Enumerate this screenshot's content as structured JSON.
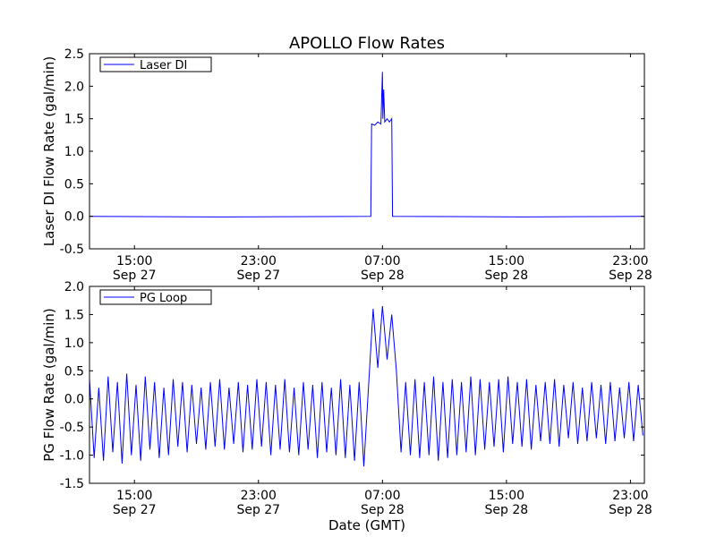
{
  "chart_data": [
    {
      "type": "line",
      "title": "APOLLO Flow Rates",
      "xlabel": "",
      "ylabel": "Laser DI Flow Rate (gal/min)",
      "ylim": [
        -0.5,
        2.5
      ],
      "yticks": [
        "-0.5",
        "0.0",
        "0.5",
        "1.0",
        "1.5",
        "2.0",
        "2.5"
      ],
      "ytick_values": [
        -0.5,
        0,
        0.5,
        1,
        1.5,
        2,
        2.5
      ],
      "x_units": "hours since Sep 27 00:00 GMT",
      "xlim": [
        12.1,
        47.9
      ],
      "xtick_values": [
        15,
        23,
        31,
        39,
        47
      ],
      "xticks": [
        [
          "15:00",
          "Sep 27"
        ],
        [
          "23:00",
          "Sep 27"
        ],
        [
          "07:00",
          "Sep 28"
        ],
        [
          "15:00",
          "Sep 28"
        ],
        [
          "23:00",
          "Sep 28"
        ]
      ],
      "legend": {
        "label": "Laser DI",
        "placement": "top-left"
      },
      "series": [
        {
          "name": "Laser DI",
          "color": "#0000ff",
          "points": [
            [
              12.1,
              0
            ],
            [
              20,
              -0.01
            ],
            [
              30.25,
              0
            ],
            [
              30.3,
              1.42
            ],
            [
              30.5,
              1.4
            ],
            [
              30.7,
              1.45
            ],
            [
              30.9,
              1.42
            ],
            [
              31.0,
              2.22
            ],
            [
              31.03,
              1.5
            ],
            [
              31.08,
              1.95
            ],
            [
              31.15,
              1.45
            ],
            [
              31.3,
              1.5
            ],
            [
              31.45,
              1.45
            ],
            [
              31.6,
              1.5
            ],
            [
              31.65,
              0
            ],
            [
              40,
              -0.01
            ],
            [
              47.9,
              0
            ]
          ]
        }
      ]
    },
    {
      "type": "line",
      "title": "",
      "xlabel": "Date (GMT)",
      "ylabel": "PG Flow Rate (gal/min)",
      "ylim": [
        -1.5,
        2.0
      ],
      "yticks": [
        "-1.5",
        "-1.0",
        "-0.5",
        "0.0",
        "0.5",
        "1.0",
        "1.5",
        "2.0"
      ],
      "ytick_values": [
        -1.5,
        -1,
        -0.5,
        0,
        0.5,
        1,
        1.5,
        2
      ],
      "x_units": "hours since Sep 27 00:00 GMT",
      "xlim": [
        12.1,
        47.9
      ],
      "xtick_values": [
        15,
        23,
        31,
        39,
        47
      ],
      "xticks": [
        [
          "15:00",
          "Sep 27"
        ],
        [
          "23:00",
          "Sep 27"
        ],
        [
          "07:00",
          "Sep 28"
        ],
        [
          "15:00",
          "Sep 28"
        ],
        [
          "23:00",
          "Sep 28"
        ]
      ],
      "legend": {
        "label": "PG Loop",
        "placement": "top-left"
      },
      "series": [
        {
          "name": "PG Loop",
          "color": "#0000ff",
          "x_start": 12.1,
          "x_step": 0.3,
          "values": [
            0.35,
            -1.05,
            0.2,
            -1.1,
            0.4,
            -0.95,
            0.3,
            -1.15,
            0.45,
            -1.0,
            0.25,
            -1.1,
            0.4,
            -0.9,
            0.3,
            -1.05,
            0.2,
            -1.0,
            0.35,
            -0.85,
            0.3,
            -0.95,
            0.25,
            -0.8,
            0.2,
            -0.9,
            0.3,
            -0.85,
            0.35,
            -0.9,
            0.2,
            -0.8,
            0.3,
            -0.95,
            0.25,
            -0.9,
            0.35,
            -0.85,
            0.3,
            -1.0,
            0.25,
            -0.9,
            0.35,
            -0.95,
            0.2,
            -1.0,
            0.3,
            -0.9,
            0.25,
            -1.05,
            0.3,
            -0.95,
            0.2,
            -1.0,
            0.35,
            -1.05,
            0.25,
            -1.1,
            0.3,
            -1.2,
            0.2,
            1.6,
            0.55,
            1.65,
            0.7,
            1.5,
            0.5,
            -0.95,
            0.3,
            -1.0,
            0.35,
            -1.05,
            0.3,
            -1.0,
            0.4,
            -1.1,
            0.3,
            -1.05,
            0.35,
            -1.0,
            0.3,
            -0.95,
            0.4,
            -1.0,
            0.35,
            -0.9,
            0.3,
            -0.85,
            0.35,
            -0.95,
            0.4,
            -0.8,
            0.3,
            -0.85,
            0.35,
            -0.9,
            0.25,
            -0.75,
            0.3,
            -0.8,
            0.35,
            -0.85,
            0.25,
            -0.7,
            0.3,
            -0.8,
            0.2,
            -0.75,
            0.3,
            -0.7,
            0.25,
            -0.8,
            0.3,
            -0.75,
            0.2,
            -0.7,
            0.3,
            -0.75,
            0.25,
            -0.65
          ]
        }
      ]
    }
  ]
}
